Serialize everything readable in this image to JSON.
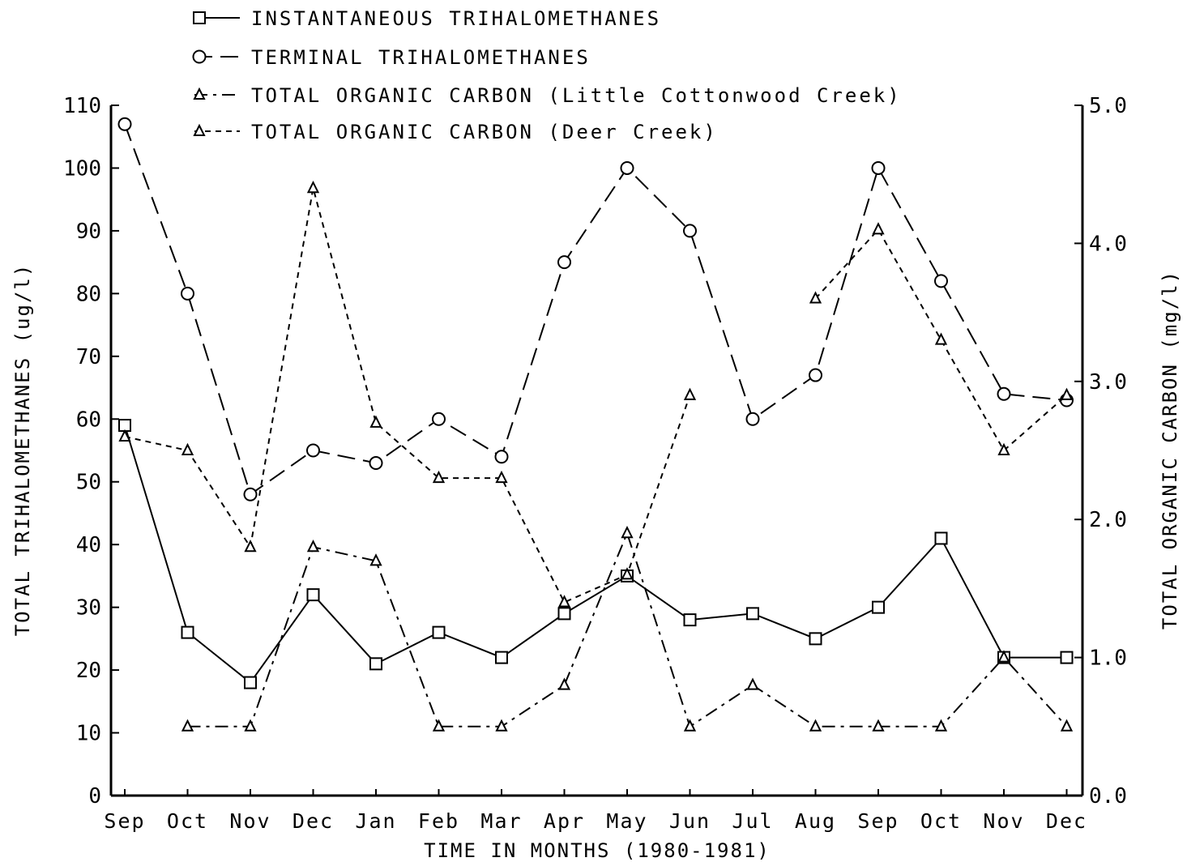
{
  "chart_data": {
    "type": "line",
    "title": "",
    "xlabel": "TIME IN MONTHS (1980-1981)",
    "ylabel_left": "TOTAL TRIHALOMETHANES (ug/l)",
    "ylabel_right": "TOTAL ORGANIC CARBON (mg/l)",
    "categories": [
      "Sep",
      "Oct",
      "Nov",
      "Dec",
      "Jan",
      "Feb",
      "Mar",
      "Apr",
      "May",
      "Jun",
      "Jul",
      "Aug",
      "Sep",
      "Oct",
      "Nov",
      "Dec"
    ],
    "y_left": {
      "min": 0,
      "max": 110,
      "ticks": [
        0,
        10,
        20,
        30,
        40,
        50,
        60,
        70,
        80,
        90,
        100,
        110
      ]
    },
    "y_right": {
      "min": 0.0,
      "max": 5.0,
      "ticks": [
        "0.0",
        "1.0",
        "2.0",
        "3.0",
        "4.0",
        "5.0"
      ]
    },
    "grid": false,
    "legend_position": "top-left",
    "series": [
      {
        "name": "INSTANTANEOUS TRIHALOMETHANES",
        "axis": "left",
        "marker": "square",
        "line": "solid",
        "values": [
          59,
          26,
          18,
          32,
          21,
          26,
          22,
          29,
          35,
          28,
          29,
          25,
          30,
          41,
          22,
          22
        ]
      },
      {
        "name": "TERMINAL TRIHALOMETHANES",
        "axis": "left",
        "marker": "circle",
        "line": "long-dash",
        "values": [
          107,
          80,
          48,
          55,
          53,
          60,
          54,
          85,
          100,
          90,
          60,
          67,
          100,
          82,
          64,
          63
        ]
      },
      {
        "name": "TOTAL ORGANIC CARBON (Little Cottonwood Creek)",
        "axis": "right",
        "marker": "triangle",
        "line": "dash-dot",
        "values": [
          null,
          0.5,
          0.5,
          1.8,
          1.7,
          0.5,
          0.5,
          0.8,
          1.9,
          0.5,
          0.8,
          0.5,
          0.5,
          0.5,
          1.0,
          0.5
        ]
      },
      {
        "name": "TOTAL ORGANIC CARBON (Deer Creek)",
        "axis": "right",
        "marker": "triangle",
        "line": "short-dash",
        "values": [
          2.6,
          2.5,
          1.8,
          4.4,
          2.7,
          2.3,
          2.3,
          1.4,
          1.6,
          2.9,
          null,
          3.6,
          4.1,
          3.3,
          2.5,
          2.9
        ]
      }
    ]
  }
}
